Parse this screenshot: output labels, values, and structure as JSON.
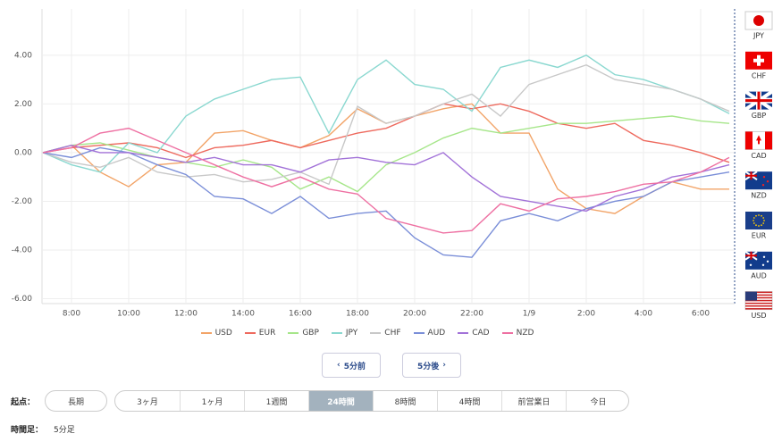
{
  "chart_data": {
    "type": "line",
    "categories": [
      null,
      "8:00",
      null,
      "10:00",
      null,
      "12:00",
      null,
      "14:00",
      null,
      "16:00",
      null,
      "18:00",
      null,
      "20:00",
      null,
      "22:00",
      null,
      "1/9",
      null,
      "2:00",
      null,
      "4:00",
      null,
      "6:00",
      null
    ],
    "ylim": [
      -6.2,
      5.9
    ],
    "yticks": [
      {
        "value": -6,
        "label": "-6.00"
      },
      {
        "value": -4,
        "label": "-4.00"
      },
      {
        "value": -2,
        "label": "-2.00"
      },
      {
        "value": 0,
        "label": "0.00"
      },
      {
        "value": 2,
        "label": "2.00"
      },
      {
        "value": 4,
        "label": "4.00"
      }
    ],
    "grid": true,
    "series": [
      {
        "name": "USD",
        "color": "#f2a468",
        "values": [
          0,
          0.3,
          -0.8,
          -1.4,
          -0.5,
          -0.4,
          0.8,
          0.9,
          0.5,
          0.2,
          0.7,
          1.8,
          1.2,
          1.5,
          1.8,
          2.0,
          0.8,
          0.8,
          -1.5,
          -2.3,
          -2.5,
          -1.8,
          -1.2,
          -1.5,
          -1.5
        ]
      },
      {
        "name": "EUR",
        "color": "#ee6a5e",
        "values": [
          0,
          0.2,
          0.3,
          0.4,
          0.2,
          -0.2,
          0.2,
          0.3,
          0.5,
          0.2,
          0.5,
          0.8,
          1.0,
          1.5,
          2.0,
          1.8,
          2.0,
          1.7,
          1.2,
          1.0,
          1.2,
          0.5,
          0.3,
          0.0,
          -0.4
        ]
      },
      {
        "name": "GBP",
        "color": "#a6e68a",
        "values": [
          0,
          0.3,
          0.4,
          0.1,
          -0.2,
          -0.4,
          -0.6,
          -0.3,
          -0.6,
          -1.5,
          -1.0,
          -1.6,
          -0.5,
          0.0,
          0.6,
          1.0,
          0.8,
          1.0,
          1.2,
          1.2,
          1.3,
          1.4,
          1.5,
          1.3,
          1.2
        ]
      },
      {
        "name": "JPY",
        "color": "#8ad8d0",
        "values": [
          0,
          -0.5,
          -0.8,
          0.4,
          0,
          1.5,
          2.2,
          2.6,
          3.0,
          3.1,
          0.8,
          3.0,
          3.8,
          2.8,
          2.6,
          1.7,
          3.5,
          3.8,
          3.5,
          4.0,
          3.2,
          3.0,
          2.6,
          2.2,
          1.6
        ]
      },
      {
        "name": "CHF",
        "color": "#c8c8c8",
        "values": [
          0,
          -0.4,
          -0.6,
          -0.2,
          -0.8,
          -1.0,
          -0.9,
          -1.2,
          -1.1,
          -0.8,
          -1.3,
          1.9,
          1.2,
          1.5,
          2.0,
          2.4,
          1.5,
          2.8,
          3.2,
          3.6,
          3.0,
          2.8,
          2.6,
          2.2,
          1.7
        ]
      },
      {
        "name": "AUD",
        "color": "#7a8ed8",
        "values": [
          0,
          -0.2,
          0.2,
          0.0,
          -0.5,
          -0.9,
          -1.8,
          -1.9,
          -2.5,
          -1.8,
          -2.7,
          -2.5,
          -2.4,
          -3.5,
          -4.2,
          -4.3,
          -2.8,
          -2.5,
          -2.8,
          -2.3,
          -2.0,
          -1.8,
          -1.2,
          -1.0,
          -0.8
        ]
      },
      {
        "name": "CAD",
        "color": "#a272d8",
        "values": [
          0,
          0.3,
          0.0,
          0.0,
          -0.2,
          -0.4,
          -0.2,
          -0.5,
          -0.5,
          -0.8,
          -0.3,
          -0.2,
          -0.4,
          -0.5,
          0.0,
          -1.0,
          -1.8,
          -2.0,
          -2.2,
          -2.4,
          -1.8,
          -1.5,
          -1.0,
          -0.8,
          -0.5
        ]
      },
      {
        "name": "NZD",
        "color": "#ee70a2",
        "values": [
          0,
          0.2,
          0.8,
          1.0,
          0.5,
          0.0,
          -0.5,
          -1.0,
          -1.4,
          -1.0,
          -1.5,
          -1.7,
          -2.7,
          -3.0,
          -3.3,
          -3.2,
          -2.1,
          -2.4,
          -1.9,
          -1.8,
          -1.6,
          -1.3,
          -1.2,
          -0.8,
          -0.2
        ]
      }
    ]
  },
  "ranking": [
    "JPY",
    "CHF",
    "GBP",
    "CAD",
    "NZD",
    "EUR",
    "AUD",
    "USD"
  ],
  "nav": [
    "5分前",
    "5分後"
  ],
  "start_label": "起点：",
  "periods": [
    "長期",
    "3ヶ月",
    "1ヶ月",
    "1週間",
    "24時間",
    "8時間",
    "4時間",
    "前営業日",
    "今日"
  ],
  "active_period": 4,
  "interval_label": "時間足：",
  "interval_value": "5分足"
}
